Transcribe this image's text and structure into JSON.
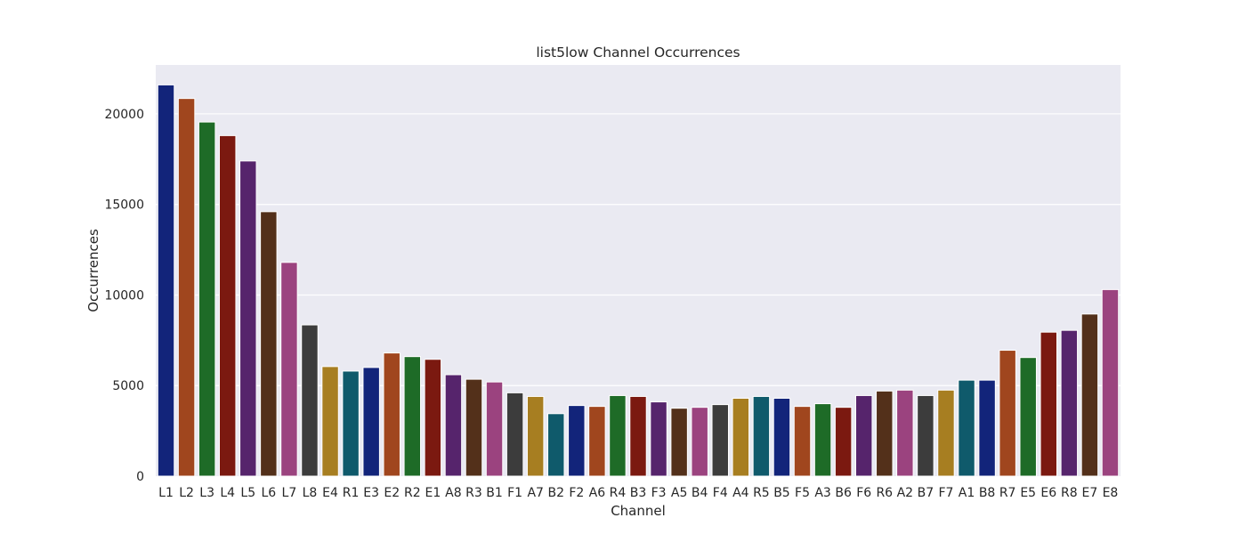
{
  "chart_data": {
    "type": "bar",
    "title": "list5low Channel Occurrences",
    "xlabel": "Channel",
    "ylabel": "Occurrences",
    "ylim": [
      0,
      22700
    ],
    "yticks": [
      0,
      5000,
      10000,
      15000,
      20000
    ],
    "yticklabels": [
      "0",
      "5000",
      "10000",
      "15000",
      "20000"
    ],
    "grid": true,
    "style": {
      "background": "#EAEAF2",
      "grid_color": "#FFFFFF"
    },
    "palette": [
      "#12247A",
      "#A0461E",
      "#1E6B27",
      "#7B1910",
      "#56246C",
      "#53301A",
      "#9B437F",
      "#3C3C3C",
      "#A77E21",
      "#0F5A6B"
    ],
    "categories": [
      "L1",
      "L2",
      "L3",
      "L4",
      "L5",
      "L6",
      "L7",
      "L8",
      "E4",
      "R1",
      "E3",
      "E2",
      "R2",
      "E1",
      "A8",
      "R3",
      "B1",
      "F1",
      "A7",
      "B2",
      "F2",
      "A6",
      "R4",
      "B3",
      "F3",
      "A5",
      "B4",
      "F4",
      "A4",
      "R5",
      "B5",
      "F5",
      "A3",
      "B6",
      "F6",
      "R6",
      "A2",
      "B7",
      "F7",
      "A1",
      "B8",
      "R7",
      "E5",
      "E6",
      "R8",
      "E7",
      "E8"
    ],
    "values": [
      21600,
      20850,
      19550,
      18800,
      17400,
      14600,
      11800,
      8350,
      6050,
      5800,
      6000,
      6800,
      6600,
      6450,
      5600,
      5350,
      5200,
      4600,
      4400,
      3450,
      3900,
      3850,
      4450,
      4400,
      4100,
      3750,
      3800,
      3950,
      4300,
      4400,
      4300,
      3850,
      4000,
      3800,
      4450,
      4700,
      4750,
      4450,
      4750,
      5300,
      5300,
      6950,
      6550,
      7950,
      8050,
      8950,
      10300
    ]
  }
}
